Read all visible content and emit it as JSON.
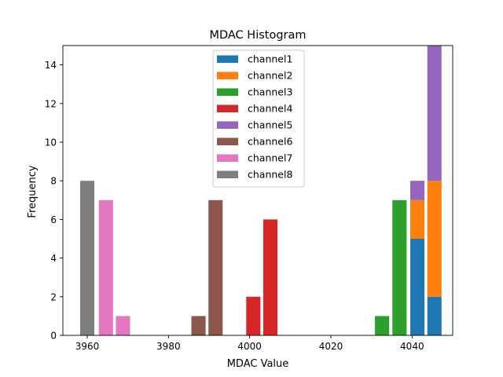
{
  "chart_data": {
    "type": "bar",
    "stacked": true,
    "title": "MDAC Histogram",
    "xlabel": "MDAC Value",
    "ylabel": "Frequency",
    "xlim": [
      3954,
      4050
    ],
    "ylim": [
      0,
      15
    ],
    "xticks": [
      3960,
      3980,
      4000,
      4020,
      4040
    ],
    "yticks": [
      0,
      2,
      4,
      6,
      8,
      10,
      12,
      14
    ],
    "bar_width": 3.5,
    "legend_position": "upper-center",
    "series": [
      {
        "name": "channel1",
        "color": "#1f77b4",
        "bars": [
          {
            "x": 4041.3,
            "value": 5
          },
          {
            "x": 4045.5,
            "value": 2
          }
        ]
      },
      {
        "name": "channel2",
        "color": "#ff7f0e",
        "bars": [
          {
            "x": 4041.3,
            "value": 2
          },
          {
            "x": 4045.5,
            "value": 6
          }
        ]
      },
      {
        "name": "channel3",
        "color": "#2ca02c",
        "bars": [
          {
            "x": 4032.6,
            "value": 1
          },
          {
            "x": 4036.9,
            "value": 7
          }
        ]
      },
      {
        "name": "channel4",
        "color": "#d62728",
        "bars": [
          {
            "x": 4000.9,
            "value": 2
          },
          {
            "x": 4005.1,
            "value": 6
          }
        ]
      },
      {
        "name": "channel5",
        "color": "#9467bd",
        "bars": [
          {
            "x": 4041.3,
            "value": 1
          },
          {
            "x": 4045.5,
            "value": 7
          }
        ]
      },
      {
        "name": "channel6",
        "color": "#8c564b",
        "bars": [
          {
            "x": 3987.4,
            "value": 1
          },
          {
            "x": 3991.6,
            "value": 7
          }
        ]
      },
      {
        "name": "channel7",
        "color": "#e377c2",
        "bars": [
          {
            "x": 3964.6,
            "value": 7
          },
          {
            "x": 3968.8,
            "value": 1
          }
        ]
      },
      {
        "name": "channel8",
        "color": "#7f7f7f",
        "bars": [
          {
            "x": 3960.0,
            "value": 8
          }
        ]
      }
    ]
  }
}
